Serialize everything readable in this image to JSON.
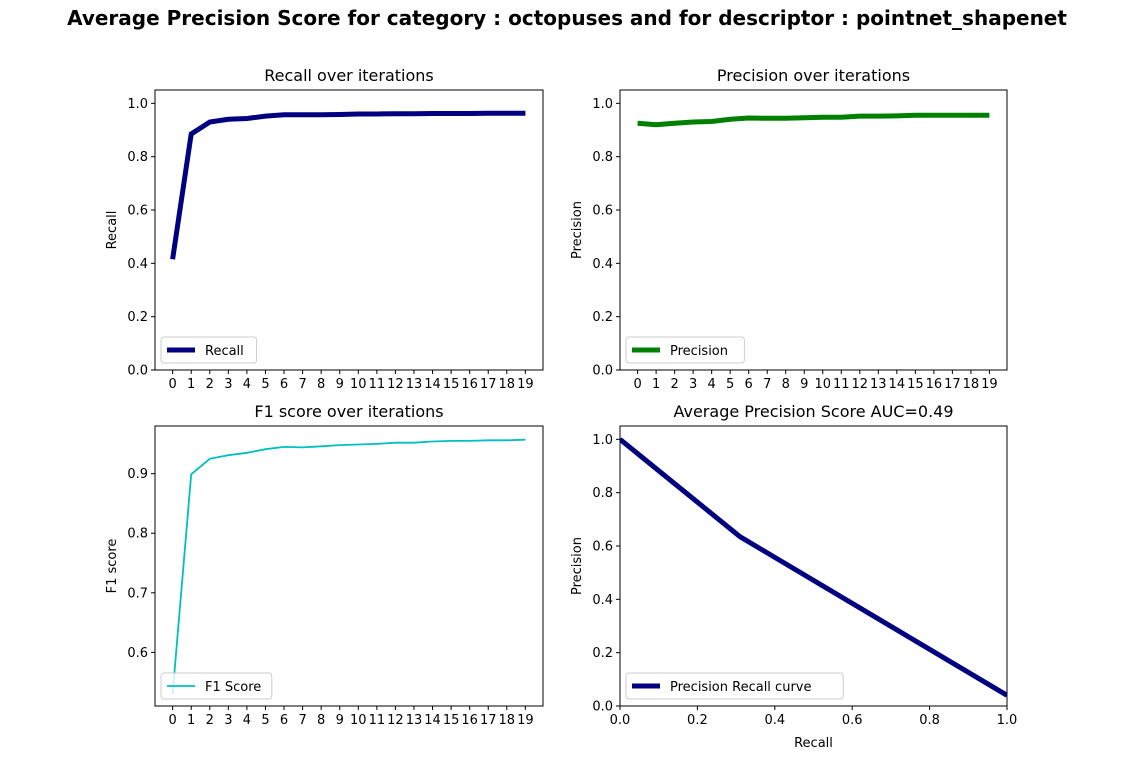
{
  "figure": {
    "suptitle": "Average Precision Score for category : octopuses and for descriptor : pointnet_shapenet"
  },
  "chart_data": [
    {
      "type": "line",
      "title": "Recall over iterations",
      "xlabel": "",
      "ylabel": "Recall",
      "x": [
        0,
        1,
        2,
        3,
        4,
        5,
        6,
        7,
        8,
        9,
        10,
        11,
        12,
        13,
        14,
        15,
        16,
        17,
        18,
        19
      ],
      "xticks": [
        "0",
        "1",
        "2",
        "3",
        "4",
        "5",
        "6",
        "7",
        "8",
        "9",
        "10",
        "11",
        "12",
        "13",
        "14",
        "15",
        "16",
        "17",
        "18",
        "19"
      ],
      "yticks": [
        "0.0",
        "0.2",
        "0.4",
        "0.6",
        "0.8",
        "1.0"
      ],
      "ylim": [
        0,
        1.05
      ],
      "xlim": [
        -0.95,
        19.95
      ],
      "grid": false,
      "legend_placement": "lower left",
      "series": [
        {
          "name": "Recall",
          "color": "#000080",
          "line_width": "thick",
          "values": [
            0.415,
            0.885,
            0.93,
            0.94,
            0.943,
            0.952,
            0.957,
            0.957,
            0.957,
            0.958,
            0.96,
            0.96,
            0.961,
            0.961,
            0.962,
            0.962,
            0.962,
            0.963,
            0.963,
            0.963
          ]
        }
      ]
    },
    {
      "type": "line",
      "title": "Precision over iterations",
      "xlabel": "",
      "ylabel": "Precision",
      "x": [
        0,
        1,
        2,
        3,
        4,
        5,
        6,
        7,
        8,
        9,
        10,
        11,
        12,
        13,
        14,
        15,
        16,
        17,
        18,
        19
      ],
      "xticks": [
        "0",
        "1",
        "2",
        "3",
        "4",
        "5",
        "6",
        "7",
        "8",
        "9",
        "10",
        "11",
        "12",
        "13",
        "14",
        "15",
        "16",
        "17",
        "18",
        "19"
      ],
      "yticks": [
        "0.0",
        "0.2",
        "0.4",
        "0.6",
        "0.8",
        "1.0"
      ],
      "ylim": [
        0,
        1.05
      ],
      "xlim": [
        -0.95,
        19.95
      ],
      "grid": false,
      "legend_placement": "lower left",
      "series": [
        {
          "name": "Precision",
          "color": "#008000",
          "line_width": "thick",
          "values": [
            0.925,
            0.92,
            0.925,
            0.93,
            0.932,
            0.94,
            0.945,
            0.944,
            0.944,
            0.946,
            0.948,
            0.948,
            0.952,
            0.952,
            0.953,
            0.955,
            0.955,
            0.955,
            0.955,
            0.955
          ]
        }
      ]
    },
    {
      "type": "line",
      "title": "F1 score over iterations",
      "xlabel": "",
      "ylabel": "F1 score",
      "x": [
        0,
        1,
        2,
        3,
        4,
        5,
        6,
        7,
        8,
        9,
        10,
        11,
        12,
        13,
        14,
        15,
        16,
        17,
        18,
        19
      ],
      "xticks": [
        "0",
        "1",
        "2",
        "3",
        "4",
        "5",
        "6",
        "7",
        "8",
        "9",
        "10",
        "11",
        "12",
        "13",
        "14",
        "15",
        "16",
        "17",
        "18",
        "19"
      ],
      "yticks": [
        "0.6",
        "0.7",
        "0.8",
        "0.9"
      ],
      "ylim": [
        0.51,
        0.98
      ],
      "xlim": [
        -0.95,
        19.95
      ],
      "grid": false,
      "legend_placement": "lower left",
      "series": [
        {
          "name": "F1 Score",
          "color": "#00BFBF",
          "line_width": "thin",
          "values": [
            0.53,
            0.899,
            0.925,
            0.931,
            0.935,
            0.941,
            0.945,
            0.944,
            0.946,
            0.948,
            0.949,
            0.95,
            0.952,
            0.952,
            0.954,
            0.955,
            0.955,
            0.956,
            0.956,
            0.957
          ]
        }
      ]
    },
    {
      "type": "line",
      "title": "Average Precision Score AUC=0.49",
      "xlabel": "Recall",
      "ylabel": "Precision",
      "xticks": [
        "0.0",
        "0.2",
        "0.4",
        "0.6",
        "0.8",
        "1.0"
      ],
      "yticks": [
        "0.0",
        "0.2",
        "0.4",
        "0.6",
        "0.8",
        "1.0"
      ],
      "xlim": [
        0,
        1
      ],
      "ylim": [
        0,
        1.05
      ],
      "grid": false,
      "legend_placement": "lower left",
      "series": [
        {
          "name": "Precision Recall curve",
          "color": "#000080",
          "line_width": "thick",
          "x": [
            0.0,
            0.31,
            1.0
          ],
          "values": [
            1.0,
            0.635,
            0.04
          ]
        }
      ]
    }
  ]
}
